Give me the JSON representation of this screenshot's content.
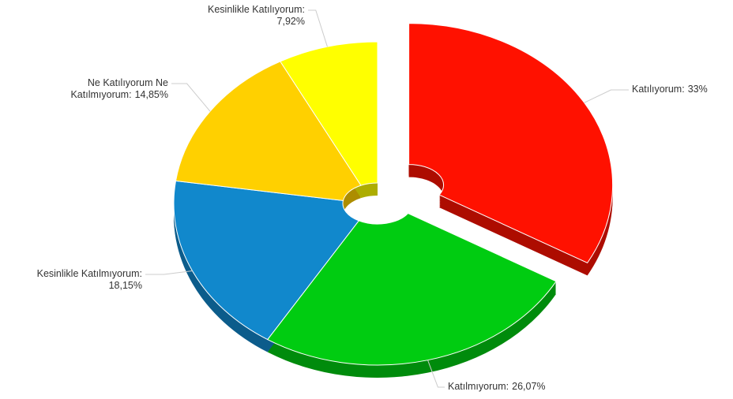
{
  "chart_data": {
    "type": "pie",
    "donut": true,
    "three_d": true,
    "exploded": [
      0
    ],
    "categories": [
      "Katılıyorum",
      "Katılmıyorum",
      "Kesinlikle Katılmıyorum",
      "Ne Katılıyorum Ne Katılmıyorum",
      "Kesinlikle Katılıyorum"
    ],
    "values": [
      33,
      26.07,
      18.15,
      14.85,
      7.92
    ],
    "value_labels": [
      "33%",
      "26,07%",
      "18,15%",
      "14,85%",
      "7,92%"
    ],
    "colors": [
      "#ff1100",
      "#00cc11",
      "#1188cc",
      "#ffd000",
      "#ffff00"
    ]
  }
}
